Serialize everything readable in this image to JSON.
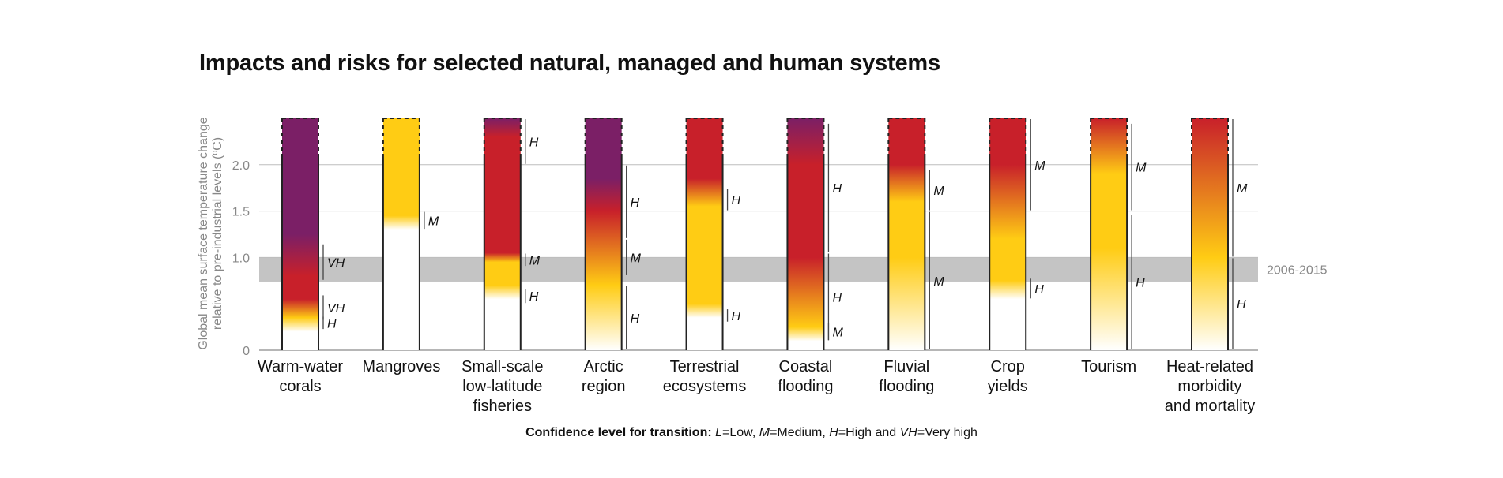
{
  "title": "Impacts and risks for selected natural, managed and human systems",
  "footer": {
    "prefix": "Confidence level  for transition: ",
    "items": [
      {
        "abbr": "L",
        "text": "=Low, "
      },
      {
        "abbr": "M",
        "text": "=Medium, "
      },
      {
        "abbr": "H",
        "text": "=High and "
      },
      {
        "abbr": "VH",
        "text": "=Very high"
      }
    ]
  },
  "colors": {
    "undetectable": "#ffffff",
    "moderate": "#ffcc14",
    "high": "#c8202a",
    "very_high": "#7b1f66",
    "band": "#c4c4c4",
    "grid": "#bdbdbd",
    "axis_text": "#888888"
  },
  "chart_data": {
    "type": "bar",
    "title": "Impacts and risks for selected natural, managed and human systems",
    "ylabel": "Global mean surface temperature change relative to pre-industrial levels (ºC)",
    "ylim": [
      0,
      2.5
    ],
    "yticks": [
      0,
      1.0,
      1.5,
      2.0
    ],
    "ytick_labels": [
      "0",
      "1.0",
      "1.5",
      "2.0"
    ],
    "reference_band": {
      "label": "2006-2015",
      "range": [
        0.74,
        1.0
      ]
    },
    "categories": [
      "Warm-water corals",
      "Mangroves",
      "Small-scale low-latitude fisheries",
      "Arctic region",
      "Terrestrial ecosystems",
      "Coastal flooding",
      "Fluvial flooding",
      "Crop yields",
      "Tourism",
      "Heat-related morbidity and mortality"
    ],
    "bars": [
      {
        "label_lines": [
          "Warm-water",
          "corals"
        ],
        "gradient": [
          [
            0.2,
            "undetectable"
          ],
          [
            0.35,
            "moderate"
          ],
          [
            0.55,
            "high"
          ],
          [
            0.8,
            "high"
          ],
          [
            1.25,
            "very_high"
          ],
          [
            2.5,
            "very_high"
          ]
        ],
        "confidence": [
          {
            "label": "VH",
            "range": [
              0.75,
              1.15
            ]
          },
          {
            "label": "VH",
            "range": [
              0.32,
              0.6
            ]
          },
          {
            "label": "H",
            "range": [
              0.22,
              0.37
            ]
          }
        ]
      },
      {
        "label_lines": [
          "Mangroves"
        ],
        "gradient": [
          [
            1.3,
            "undetectable"
          ],
          [
            1.45,
            "moderate"
          ],
          [
            2.5,
            "moderate"
          ]
        ],
        "confidence": [
          {
            "label": "M",
            "range": [
              1.3,
              1.5
            ]
          }
        ]
      },
      {
        "label_lines": [
          "Small-scale",
          "low-latitude",
          "fisheries"
        ],
        "gradient": [
          [
            0.55,
            "undetectable"
          ],
          [
            0.7,
            "moderate"
          ],
          [
            0.95,
            "moderate"
          ],
          [
            1.05,
            "high"
          ],
          [
            2.3,
            "high"
          ],
          [
            2.5,
            "very_high"
          ]
        ],
        "confidence": [
          {
            "label": "H",
            "range": [
              2.0,
              2.5
            ]
          },
          {
            "label": "M",
            "range": [
              0.9,
              1.05
            ]
          },
          {
            "label": "H",
            "range": [
              0.5,
              0.67
            ]
          }
        ]
      },
      {
        "label_lines": [
          "Arctic",
          "region"
        ],
        "gradient": [
          [
            0.0,
            "undetectable"
          ],
          [
            0.7,
            "moderate"
          ],
          [
            1.5,
            "high"
          ],
          [
            1.85,
            "very_high"
          ],
          [
            2.5,
            "very_high"
          ]
        ],
        "confidence": [
          {
            "label": "H",
            "range": [
              1.2,
              2.0
            ]
          },
          {
            "label": "M",
            "range": [
              0.8,
              1.2
            ]
          },
          {
            "label": "H",
            "range": [
              0.0,
              0.7
            ]
          }
        ]
      },
      {
        "label_lines": [
          "Terrestrial",
          "ecosystems"
        ],
        "gradient": [
          [
            0.35,
            "undetectable"
          ],
          [
            0.5,
            "moderate"
          ],
          [
            1.55,
            "moderate"
          ],
          [
            1.85,
            "high"
          ],
          [
            2.5,
            "high"
          ]
        ],
        "confidence": [
          {
            "label": "H",
            "range": [
              1.5,
              1.75
            ]
          },
          {
            "label": "H",
            "range": [
              0.3,
              0.45
            ]
          }
        ]
      },
      {
        "label_lines": [
          "Coastal",
          "flooding"
        ],
        "gradient": [
          [
            0.1,
            "undetectable"
          ],
          [
            0.25,
            "moderate"
          ],
          [
            1.0,
            "high"
          ],
          [
            2.0,
            "high"
          ],
          [
            2.5,
            "very_high"
          ]
        ],
        "confidence": [
          {
            "label": "H",
            "range": [
              1.05,
              2.45
            ]
          },
          {
            "label": "H",
            "range": [
              0.1,
              1.05
            ]
          },
          {
            "label": "M",
            "range": [
              0.1,
              0.3
            ]
          }
        ]
      },
      {
        "label_lines": [
          "Fluvial",
          "flooding"
        ],
        "gradient": [
          [
            0.0,
            "undetectable"
          ],
          [
            1.0,
            "moderate"
          ],
          [
            1.6,
            "moderate"
          ],
          [
            2.0,
            "high"
          ],
          [
            2.5,
            "high"
          ]
        ],
        "confidence": [
          {
            "label": "M",
            "range": [
              1.5,
              1.95
            ]
          },
          {
            "label": "M",
            "range": [
              0.0,
              1.5
            ]
          }
        ]
      },
      {
        "label_lines": [
          "Crop",
          "yields"
        ],
        "gradient": [
          [
            0.55,
            "undetectable"
          ],
          [
            0.75,
            "moderate"
          ],
          [
            1.2,
            "moderate"
          ],
          [
            2.0,
            "high"
          ],
          [
            2.5,
            "high"
          ]
        ],
        "confidence": [
          {
            "label": "M",
            "range": [
              1.5,
              2.5
            ]
          },
          {
            "label": "H",
            "range": [
              0.55,
              0.78
            ]
          }
        ]
      },
      {
        "label_lines": [
          "Tourism"
        ],
        "gradient": [
          [
            0.0,
            "undetectable"
          ],
          [
            1.1,
            "moderate"
          ],
          [
            1.9,
            "moderate"
          ],
          [
            2.5,
            "high"
          ]
        ],
        "confidence": [
          {
            "label": "M",
            "range": [
              1.5,
              2.45
            ]
          },
          {
            "label": "H",
            "range": [
              0.0,
              1.47
            ]
          }
        ]
      },
      {
        "label_lines": [
          "Heat-related",
          "morbidity",
          "and mortality"
        ],
        "gradient": [
          [
            0.0,
            "undetectable"
          ],
          [
            1.0,
            "moderate"
          ],
          [
            2.5,
            "high"
          ]
        ],
        "confidence": [
          {
            "label": "M",
            "range": [
              1.0,
              2.5
            ]
          },
          {
            "label": "H",
            "range": [
              0.0,
              1.0
            ]
          }
        ]
      }
    ]
  }
}
